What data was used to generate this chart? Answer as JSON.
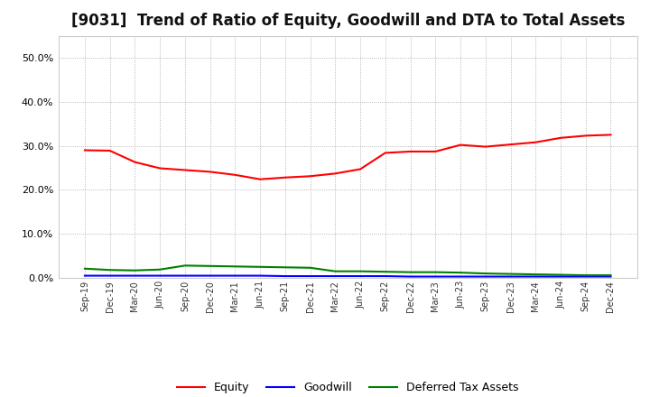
{
  "title": "[9031]  Trend of Ratio of Equity, Goodwill and DTA to Total Assets",
  "x_labels": [
    "Sep-19",
    "Dec-19",
    "Mar-20",
    "Jun-20",
    "Sep-20",
    "Dec-20",
    "Mar-21",
    "Jun-21",
    "Sep-21",
    "Dec-21",
    "Mar-22",
    "Jun-22",
    "Sep-22",
    "Dec-22",
    "Mar-23",
    "Jun-23",
    "Sep-23",
    "Dec-23",
    "Mar-24",
    "Jun-24",
    "Sep-24",
    "Dec-24"
  ],
  "equity": [
    0.29,
    0.289,
    0.263,
    0.249,
    0.245,
    0.241,
    0.234,
    0.224,
    0.228,
    0.231,
    0.237,
    0.247,
    0.284,
    0.287,
    0.287,
    0.302,
    0.298,
    0.303,
    0.308,
    0.318,
    0.323,
    0.325
  ],
  "goodwill": [
    0.005,
    0.005,
    0.005,
    0.005,
    0.005,
    0.005,
    0.005,
    0.005,
    0.004,
    0.004,
    0.004,
    0.004,
    0.004,
    0.003,
    0.003,
    0.003,
    0.003,
    0.003,
    0.003,
    0.003,
    0.003,
    0.003
  ],
  "dta": [
    0.021,
    0.018,
    0.017,
    0.019,
    0.028,
    0.027,
    0.026,
    0.025,
    0.024,
    0.023,
    0.015,
    0.015,
    0.014,
    0.013,
    0.013,
    0.012,
    0.01,
    0.009,
    0.008,
    0.007,
    0.006,
    0.006
  ],
  "equity_color": "#FF0000",
  "goodwill_color": "#0000FF",
  "dta_color": "#008000",
  "ylim": [
    0.0,
    0.55
  ],
  "yticks": [
    0.0,
    0.1,
    0.2,
    0.3,
    0.4,
    0.5
  ],
  "background_color": "#FFFFFF",
  "grid_color": "#999999",
  "title_fontsize": 12
}
